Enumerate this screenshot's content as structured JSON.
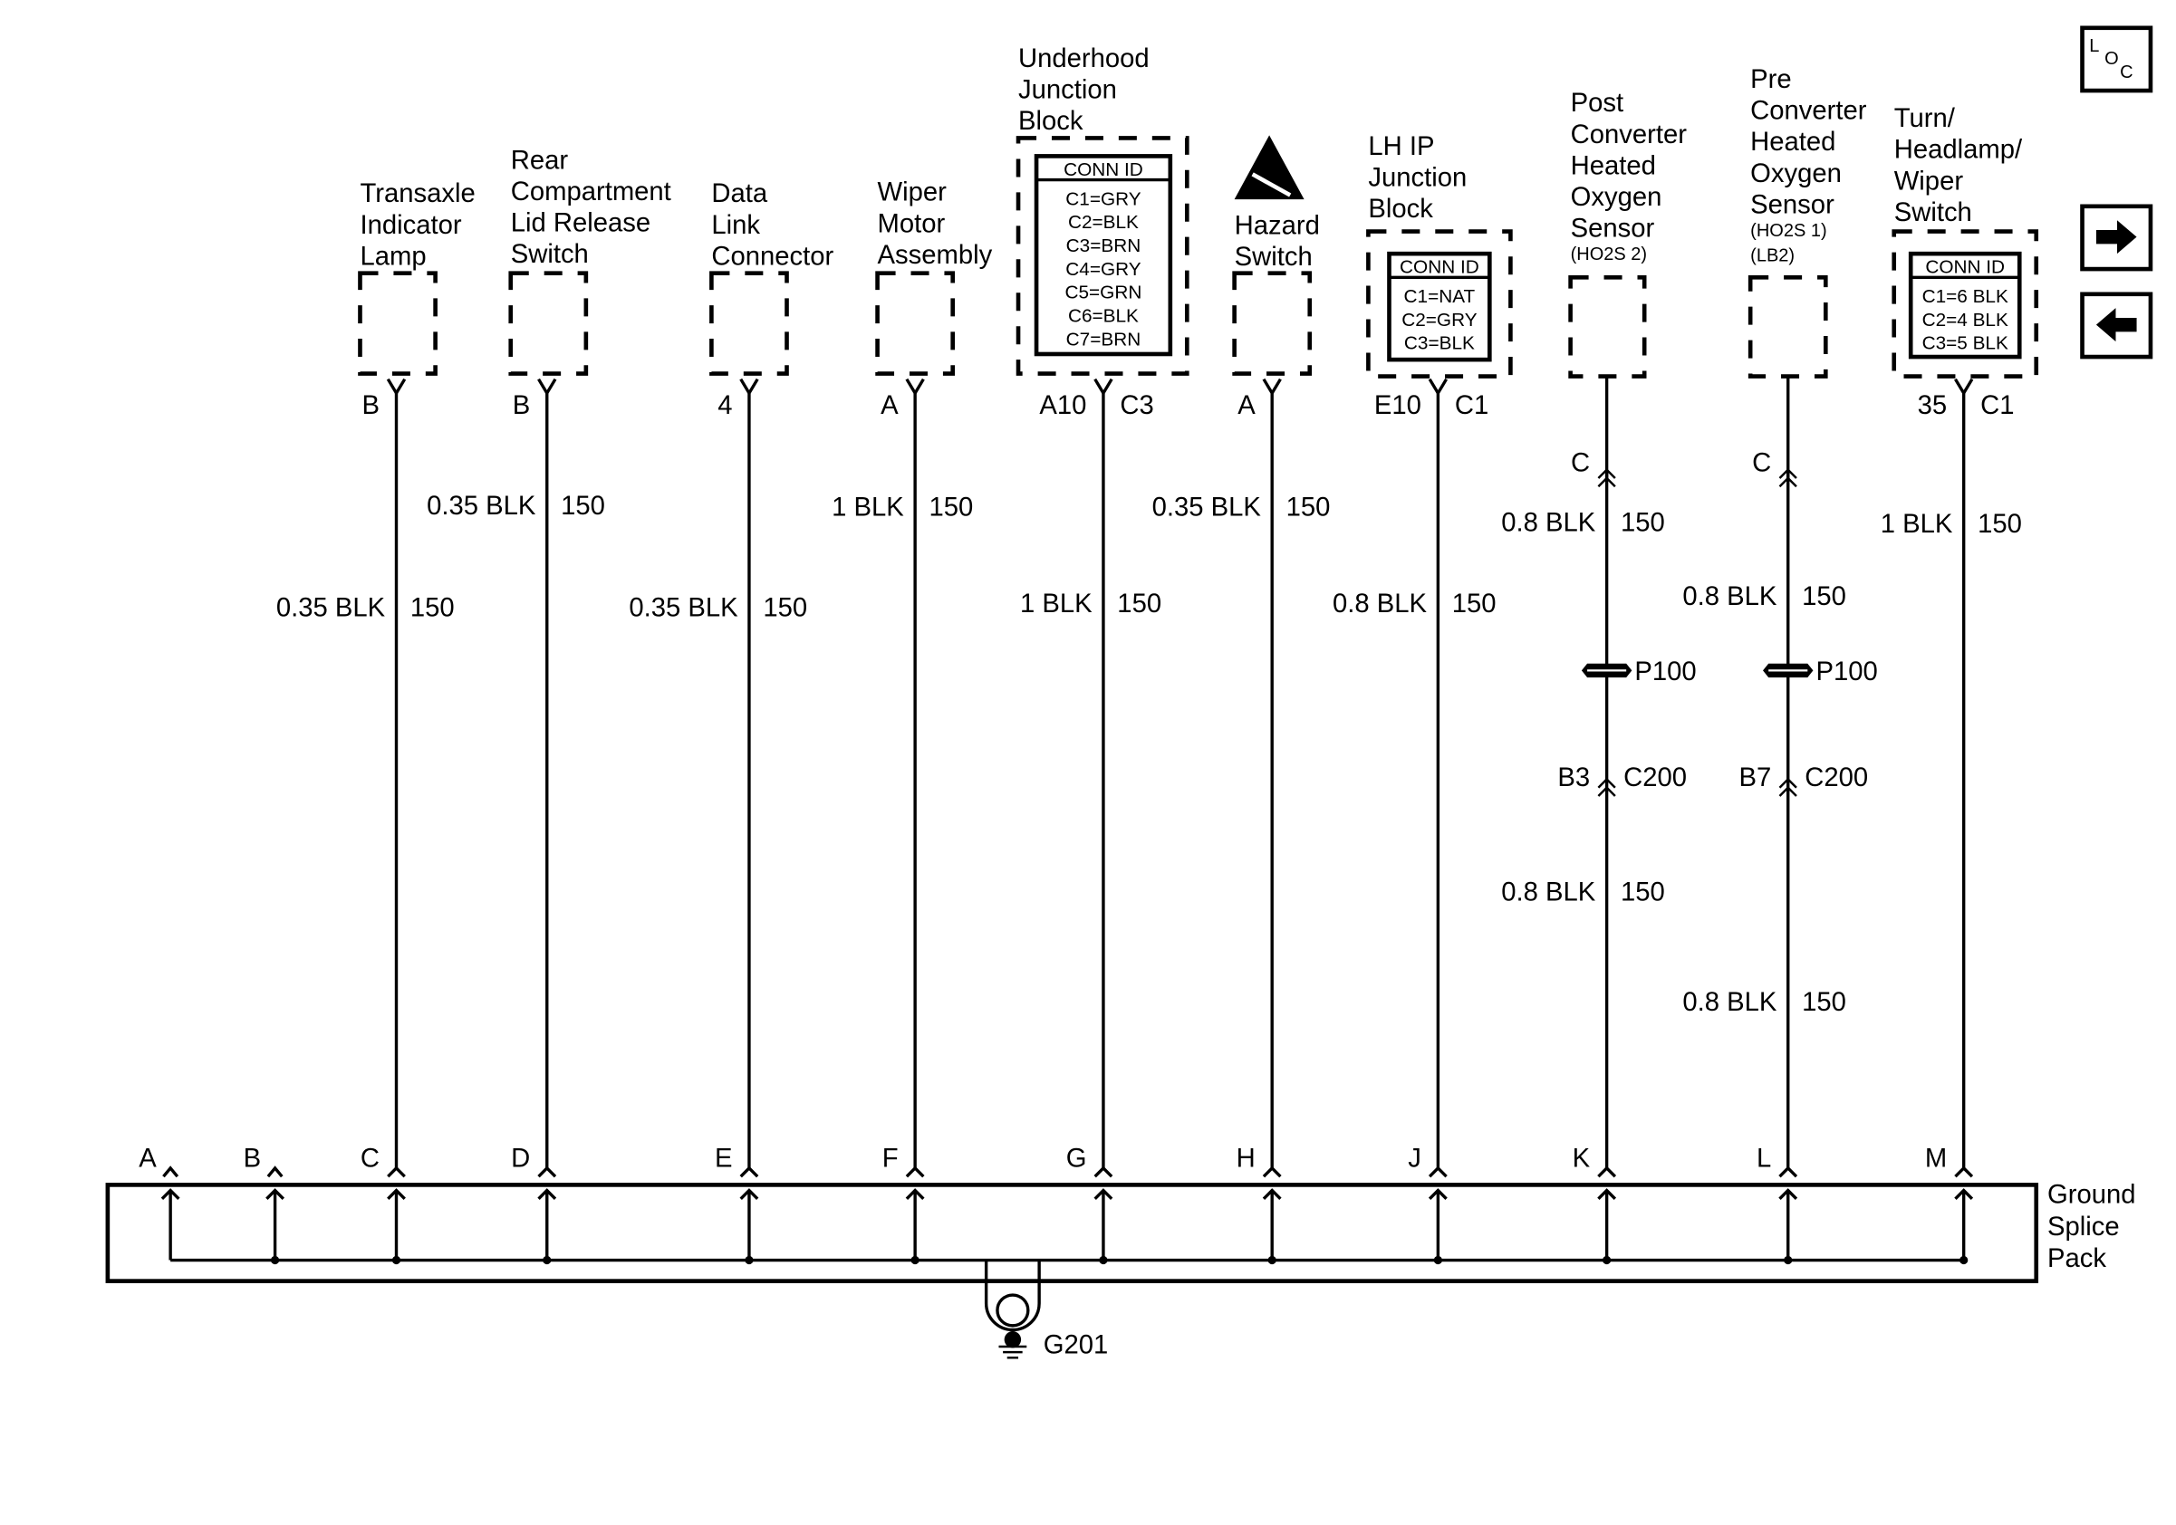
{
  "components": [
    {
      "name": [
        "Transaxle",
        "Indicator",
        "Lamp"
      ],
      "pin_left": "B",
      "pin_right": "",
      "wire": [
        {
          "gauge": "0.35 BLK",
          "circuit": "150"
        }
      ],
      "splice_pin": "C"
    },
    {
      "name": [
        "Rear",
        "Compartment",
        "Lid Release",
        "Switch"
      ],
      "pin_left": "B",
      "pin_right": "",
      "wire": [
        {
          "gauge": "0.35 BLK",
          "circuit": "150"
        }
      ],
      "splice_pin": "D"
    },
    {
      "name": [
        "Data",
        "Link",
        "Connector"
      ],
      "pin_left": "4",
      "pin_right": "",
      "wire": [
        {
          "gauge": "0.35 BLK",
          "circuit": "150"
        }
      ],
      "splice_pin": "E"
    },
    {
      "name": [
        "Wiper",
        "Motor",
        "Assembly"
      ],
      "pin_left": "A",
      "pin_right": "",
      "wire": [
        {
          "gauge": "1 BLK",
          "circuit": "150"
        }
      ],
      "splice_pin": "F"
    },
    {
      "name": [
        "Underhood",
        "Junction",
        "Block"
      ],
      "conn_id": {
        "title": "CONN ID",
        "rows": [
          "C1=GRY",
          "C2=BLK",
          "C3=BRN",
          "C4=GRY",
          "C5=GRN",
          "C6=BLK",
          "C7=BRN"
        ]
      },
      "pin_left": "A10",
      "pin_right": "C3",
      "wire": [
        {
          "gauge": "1 BLK",
          "circuit": "150"
        }
      ],
      "splice_pin": "G"
    },
    {
      "name": [
        "Hazard",
        "Switch"
      ],
      "esd_icon": "electrostatic-discharge-warning-icon",
      "pin_left": "A",
      "pin_right": "",
      "wire": [
        {
          "gauge": "0.35 BLK",
          "circuit": "150"
        }
      ],
      "splice_pin": "H"
    },
    {
      "name": [
        "LH IP",
        "Junction",
        "Block"
      ],
      "conn_id": {
        "title": "CONN ID",
        "rows": [
          "C1=NAT",
          "C2=GRY",
          "C3=BLK"
        ]
      },
      "pin_left": "E10",
      "pin_right": "C1",
      "wire": [
        {
          "gauge": "0.8 BLK",
          "circuit": "150"
        }
      ],
      "splice_pin": "J"
    },
    {
      "name": [
        "Post",
        "Converter",
        "Heated",
        "Oxygen",
        "Sensor"
      ],
      "sub": [
        "(HO2S 2)"
      ],
      "pin_left": "C",
      "pin_right": "",
      "wire": [
        {
          "gauge": "0.8 BLK",
          "circuit": "150"
        },
        {
          "gauge": "0.8 BLK",
          "circuit": "150"
        }
      ],
      "pass_through": "P100",
      "inline": {
        "pin": "B3",
        "connector": "C200"
      },
      "splice_pin": "K"
    },
    {
      "name": [
        "Pre",
        "Converter",
        "Heated",
        "Oxygen",
        "Sensor"
      ],
      "sub": [
        "(HO2S 1)",
        "(LB2)"
      ],
      "pin_left": "C",
      "pin_right": "",
      "wire": [
        {
          "gauge": "0.8 BLK",
          "circuit": "150"
        },
        {
          "gauge": "0.8 BLK",
          "circuit": "150"
        }
      ],
      "pass_through": "P100",
      "inline": {
        "pin": "B7",
        "connector": "C200"
      },
      "splice_pin": "L"
    },
    {
      "name": [
        "Turn/",
        "Headlamp/",
        "Wiper",
        "Switch"
      ],
      "conn_id": {
        "title": "CONN ID",
        "rows": [
          "C1=6 BLK",
          "C2=4 BLK",
          "C3=5 BLK"
        ]
      },
      "pin_left": "35",
      "pin_right": "C1",
      "wire": [
        {
          "gauge": "1 BLK",
          "circuit": "150"
        }
      ],
      "splice_pin": "M"
    }
  ],
  "splice": {
    "name": [
      "Ground",
      "Splice",
      "Pack"
    ],
    "unused_pins": [
      "A",
      "B"
    ]
  },
  "ground": {
    "label": "G201"
  },
  "nav": {
    "loc_letters": [
      "L",
      "O",
      "C"
    ],
    "loc_icon": "location-view-icon",
    "next_icon": "arrow-right-icon",
    "prev_icon": "arrow-left-icon"
  }
}
